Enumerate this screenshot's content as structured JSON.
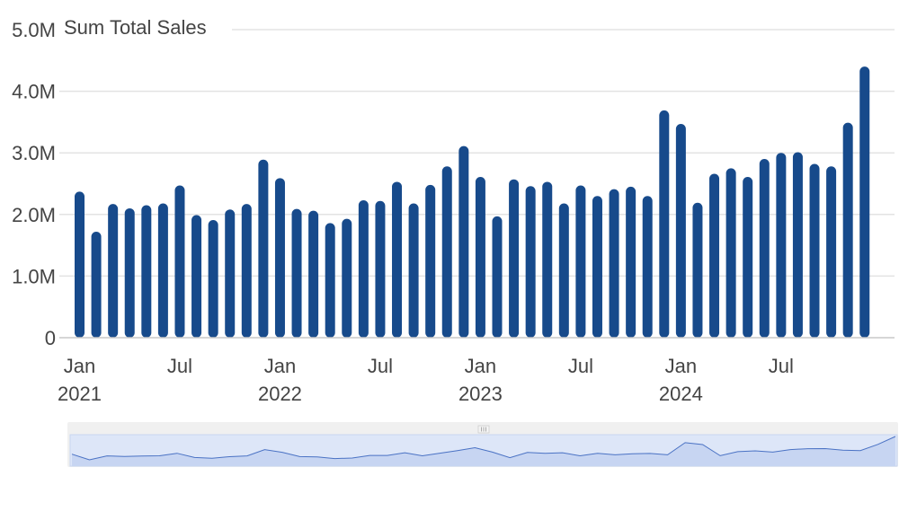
{
  "chart_data": {
    "type": "bar",
    "ylabel": "Sum Total Sales",
    "ylim": [
      0,
      5000000
    ],
    "y_ticks": [
      {
        "value": 0,
        "label": "0"
      },
      {
        "value": 1000000,
        "label": "1.0M"
      },
      {
        "value": 2000000,
        "label": "2.0M"
      },
      {
        "value": 3000000,
        "label": "3.0M"
      },
      {
        "value": 4000000,
        "label": "4.0M"
      },
      {
        "value": 5000000,
        "label": "5.0M"
      }
    ],
    "x_ticks": [
      {
        "index": 0,
        "label": "Jan",
        "sublabel": "2021"
      },
      {
        "index": 6,
        "label": "Jul",
        "sublabel": ""
      },
      {
        "index": 12,
        "label": "Jan",
        "sublabel": "2022"
      },
      {
        "index": 18,
        "label": "Jul",
        "sublabel": ""
      },
      {
        "index": 24,
        "label": "Jan",
        "sublabel": "2023"
      },
      {
        "index": 30,
        "label": "Jul",
        "sublabel": ""
      },
      {
        "index": 36,
        "label": "Jan",
        "sublabel": "2024"
      },
      {
        "index": 42,
        "label": "Jul",
        "sublabel": ""
      }
    ],
    "categories": [
      "2021-01",
      "2021-02",
      "2021-03",
      "2021-04",
      "2021-05",
      "2021-06",
      "2021-07",
      "2021-08",
      "2021-09",
      "2021-10",
      "2021-11",
      "2021-12",
      "2022-01",
      "2022-02",
      "2022-03",
      "2022-04",
      "2022-05",
      "2022-06",
      "2022-07",
      "2022-08",
      "2022-09",
      "2022-10",
      "2022-11",
      "2022-12",
      "2023-01",
      "2023-02",
      "2023-03",
      "2023-04",
      "2023-05",
      "2023-06",
      "2023-07",
      "2023-08",
      "2023-09",
      "2023-10",
      "2023-11",
      "2023-12",
      "2024-01",
      "2024-02",
      "2024-03",
      "2024-04",
      "2024-05",
      "2024-06",
      "2024-07",
      "2024-08",
      "2024-09",
      "2024-10",
      "2024-11",
      "2024-12"
    ],
    "values": [
      2370000,
      1720000,
      2170000,
      2100000,
      2150000,
      2180000,
      2470000,
      1990000,
      1910000,
      2080000,
      2170000,
      2890000,
      2590000,
      2090000,
      2060000,
      1860000,
      1930000,
      2230000,
      2220000,
      2530000,
      2180000,
      2480000,
      2780000,
      3110000,
      2610000,
      1970000,
      2570000,
      2460000,
      2530000,
      2180000,
      2470000,
      2300000,
      2410000,
      2450000,
      2300000,
      3690000,
      3470000,
      2190000,
      2660000,
      2750000,
      2610000,
      2900000,
      3000000,
      3010000,
      2820000,
      2780000,
      3490000,
      4400000
    ],
    "bar_color": "#174a8b",
    "grid": true,
    "grid_color": "#e3e3e3",
    "navigator": {
      "handle_icon": "grip-handle-icon",
      "fill_color": "#dde6f8",
      "line_color": "#4a72c4"
    }
  }
}
